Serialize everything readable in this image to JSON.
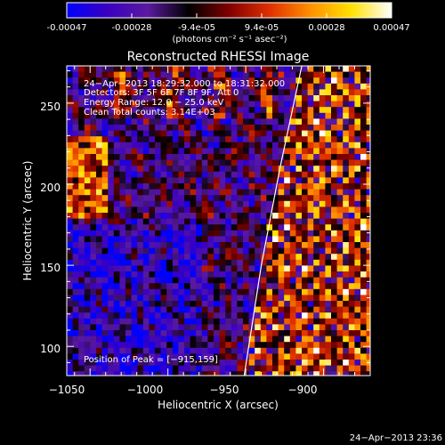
{
  "colorbar": {
    "ticks": [
      "-0.00047",
      "-0.00028",
      "-9.4e-05",
      "9.4e-05",
      "0.00028",
      "0.00047"
    ],
    "units_label": "(photons cm⁻² s⁻¹ asec⁻²)"
  },
  "chart_data": {
    "type": "heatmap",
    "title": "Reconstructed RHESSI Image",
    "xlabel": "Heliocentric X (arcsec)",
    "ylabel": "Heliocentric Y (arcsec)",
    "xlim": [
      -1065,
      -870
    ],
    "ylim": [
      82,
      273
    ],
    "x_ticks": [
      -1050,
      -1000,
      -950,
      -900
    ],
    "x_tick_labels": [
      "−1050",
      "−1000",
      "−950",
      "−900"
    ],
    "y_ticks": [
      100,
      150,
      200,
      250
    ],
    "y_tick_labels": [
      "100",
      "150",
      "200",
      "250"
    ],
    "color_range": [
      -0.00047,
      0.00047
    ],
    "colormap": [
      "#0000ff",
      "#3a00c0",
      "#5a1aa0",
      "#000000",
      "#800000",
      "#e03000",
      "#ff9000",
      "#ffe000",
      "#ffffff"
    ],
    "annotations": [
      "24−Apr−2013 18:29:32.000 to 18:31:32.000",
      "Detectors: 3F 5F 6F 7F 8F 9F, Att 0",
      "Energy Range: 12.0 − 25.0 keV",
      "Clean    Total counts: 3.14E+03"
    ],
    "peak_label": "Position of Peak = [−915,159]",
    "peak_position": [
      -915,
      159
    ],
    "limb_arc": [
      [
        -951,
        82
      ],
      [
        -940,
        150
      ],
      [
        -928,
        210
      ],
      [
        -914,
        273
      ]
    ]
  },
  "footer": {
    "timestamp": "24−Apr−2013 23:36"
  }
}
